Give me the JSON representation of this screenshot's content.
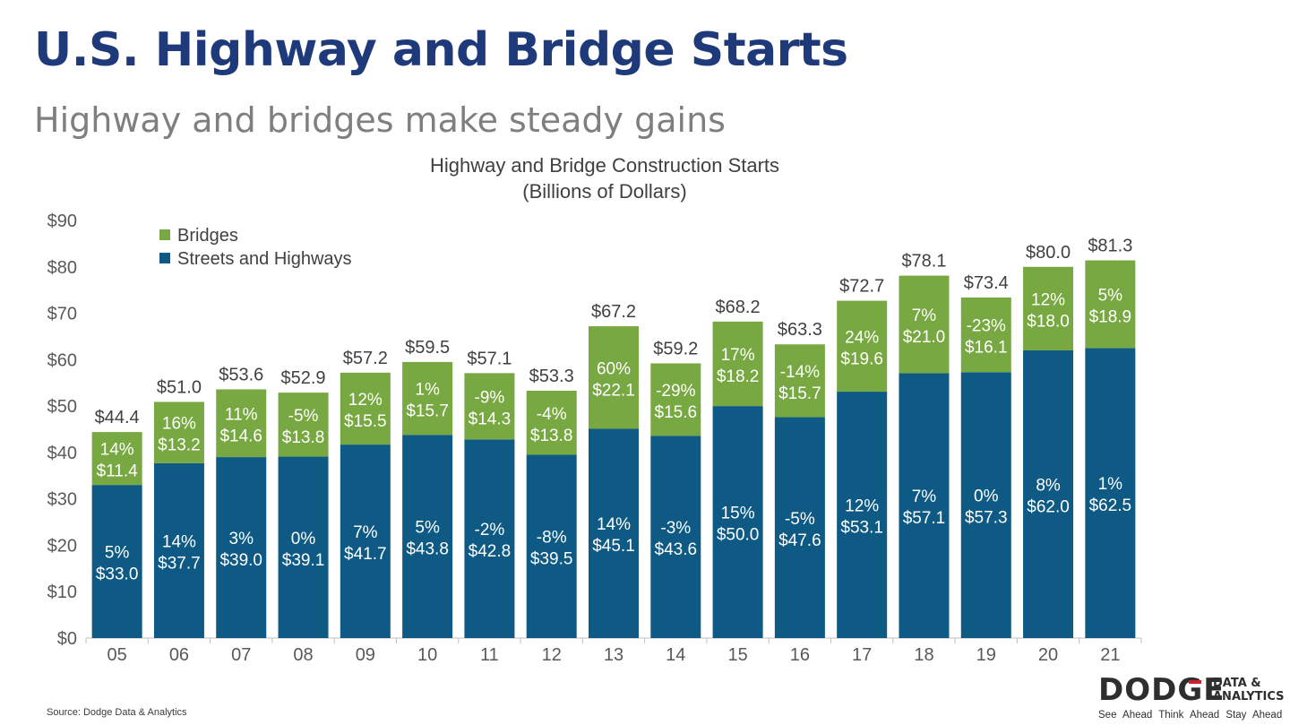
{
  "slide": {
    "title": "U.S. Highway and Bridge Starts",
    "subtitle": "Highway and bridges make steady gains",
    "source": "Source: Dodge Data & Analytics"
  },
  "logo": {
    "word": "DODGE",
    "side_line1": "DATA &",
    "side_line2": "ANALYTICS",
    "tagline": "See Ahead  Think Ahead  Stay Ahead"
  },
  "colors": {
    "bridges": "#78a841",
    "streets": "#0e5a84",
    "title": "#1f3a7a",
    "subtitle": "#7f7f7f"
  },
  "chart_data": {
    "type": "bar",
    "stacked": true,
    "title": "Highway and Bridge Construction Starts",
    "subtitle": "(Billions of Dollars)",
    "xlabel": "",
    "ylabel": "",
    "ylim": [
      0,
      90
    ],
    "yticks": [
      "$0",
      "$10",
      "$20",
      "$30",
      "$40",
      "$50",
      "$60",
      "$70",
      "$80",
      "$90"
    ],
    "legend_position": "top-left",
    "grid": false,
    "categories": [
      "05",
      "06",
      "07",
      "08",
      "09",
      "10",
      "11",
      "12",
      "13",
      "14",
      "15",
      "16",
      "17",
      "18",
      "19",
      "20",
      "21"
    ],
    "totals": [
      "$44.4",
      "$51.0",
      "$53.6",
      "$52.9",
      "$57.2",
      "$59.5",
      "$57.1",
      "$53.3",
      "$67.2",
      "$59.2",
      "$68.2",
      "$63.3",
      "$72.7",
      "$78.1",
      "$73.4",
      "$80.0",
      "$81.3"
    ],
    "series": [
      {
        "name": "Streets and Highways",
        "color": "#0e5a84",
        "values": [
          33.0,
          37.7,
          39.0,
          39.1,
          41.7,
          43.8,
          42.8,
          39.5,
          45.1,
          43.6,
          50.0,
          47.6,
          53.1,
          57.1,
          57.3,
          62.0,
          62.5
        ],
        "labels": [
          "$33.0",
          "$37.7",
          "$39.0",
          "$39.1",
          "$41.7",
          "$43.8",
          "$42.8",
          "$39.5",
          "$45.1",
          "$43.6",
          "$50.0",
          "$47.6",
          "$53.1",
          "$57.1",
          "$57.3",
          "$62.0",
          "$62.5"
        ],
        "pct": [
          "5%",
          "14%",
          "3%",
          "0%",
          "7%",
          "5%",
          "-2%",
          "-8%",
          "14%",
          "-3%",
          "15%",
          "-5%",
          "12%",
          "7%",
          "0%",
          "8%",
          "1%"
        ]
      },
      {
        "name": "Bridges",
        "color": "#78a841",
        "values": [
          11.4,
          13.2,
          14.6,
          13.8,
          15.5,
          15.7,
          14.3,
          13.8,
          22.1,
          15.6,
          18.2,
          15.7,
          19.6,
          21.0,
          16.1,
          18.0,
          18.9
        ],
        "labels": [
          "$11.4",
          "$13.2",
          "$14.6",
          "$13.8",
          "$15.5",
          "$15.7",
          "$14.3",
          "$13.8",
          "$22.1",
          "$15.6",
          "$18.2",
          "$15.7",
          "$19.6",
          "$21.0",
          "$16.1",
          "$18.0",
          "$18.9"
        ],
        "pct": [
          "14%",
          "16%",
          "11%",
          "-5%",
          "12%",
          "1%",
          "-9%",
          "-4%",
          "60%",
          "-29%",
          "17%",
          "-14%",
          "24%",
          "7%",
          "-23%",
          "12%",
          "5%"
        ]
      }
    ],
    "legend": [
      {
        "name": "Bridges",
        "color": "#78a841"
      },
      {
        "name": "Streets and Highways",
        "color": "#0e5a84"
      }
    ]
  }
}
